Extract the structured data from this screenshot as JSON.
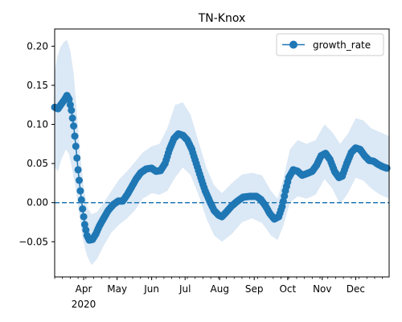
{
  "chart_data": {
    "type": "line",
    "title": "TN-Knox",
    "xlabel": "",
    "ylabel": "",
    "x_range": [
      "2020-03-06",
      "2020-12-31"
    ],
    "ylim": [
      -0.095,
      0.222
    ],
    "grid": false,
    "legend_position": "top-right",
    "y_ticks": [
      {
        "value": 0.2,
        "label": "0.20"
      },
      {
        "value": 0.15,
        "label": "0.15"
      },
      {
        "value": 0.1,
        "label": "0.10"
      },
      {
        "value": 0.05,
        "label": "0.05"
      },
      {
        "value": 0.0,
        "label": "0.00"
      },
      {
        "value": -0.05,
        "label": "−0.05"
      }
    ],
    "x_ticks": [
      {
        "date": "2020-04-01",
        "label": "Apr"
      },
      {
        "date": "2020-05-01",
        "label": "May"
      },
      {
        "date": "2020-06-01",
        "label": "Jun"
      },
      {
        "date": "2020-07-01",
        "label": "Jul"
      },
      {
        "date": "2020-08-01",
        "label": "Aug"
      },
      {
        "date": "2020-09-01",
        "label": "Sep"
      },
      {
        "date": "2020-10-01",
        "label": "Oct"
      },
      {
        "date": "2020-11-01",
        "label": "Nov"
      },
      {
        "date": "2020-12-01",
        "label": "Dec"
      }
    ],
    "year_label": "2020",
    "reference_line": {
      "y": 0.0,
      "style": "dashed",
      "color": "#1f77b4"
    },
    "series": [
      {
        "name": "growth_rate",
        "color": "#1f77b4",
        "band_color": "#dbe8f5",
        "marker": "circle",
        "points": [
          [
            "2020-03-06",
            0.122
          ],
          [
            "2020-03-09",
            0.12
          ],
          [
            "2020-03-12",
            0.126
          ],
          [
            "2020-03-15",
            0.132
          ],
          [
            "2020-03-17",
            0.137
          ],
          [
            "2020-03-19",
            0.132
          ],
          [
            "2020-03-21",
            0.118
          ],
          [
            "2020-03-23",
            0.098
          ],
          [
            "2020-03-25",
            0.072
          ],
          [
            "2020-03-27",
            0.042
          ],
          [
            "2020-03-29",
            0.015
          ],
          [
            "2020-03-31",
            -0.008
          ],
          [
            "2020-04-02",
            -0.028
          ],
          [
            "2020-04-04",
            -0.042
          ],
          [
            "2020-04-06",
            -0.048
          ],
          [
            "2020-04-09",
            -0.047
          ],
          [
            "2020-04-12",
            -0.04
          ],
          [
            "2020-04-15",
            -0.03
          ],
          [
            "2020-04-19",
            -0.02
          ],
          [
            "2020-04-23",
            -0.01
          ],
          [
            "2020-04-28",
            -0.002
          ],
          [
            "2020-05-02",
            0.002
          ],
          [
            "2020-05-06",
            0.002
          ],
          [
            "2020-05-10",
            0.01
          ],
          [
            "2020-05-14",
            0.02
          ],
          [
            "2020-05-18",
            0.03
          ],
          [
            "2020-05-22",
            0.038
          ],
          [
            "2020-05-27",
            0.043
          ],
          [
            "2020-06-01",
            0.044
          ],
          [
            "2020-06-05",
            0.04
          ],
          [
            "2020-06-09",
            0.041
          ],
          [
            "2020-06-13",
            0.05
          ],
          [
            "2020-06-17",
            0.068
          ],
          [
            "2020-06-21",
            0.082
          ],
          [
            "2020-06-25",
            0.088
          ],
          [
            "2020-06-29",
            0.086
          ],
          [
            "2020-07-03",
            0.08
          ],
          [
            "2020-07-07",
            0.068
          ],
          [
            "2020-07-11",
            0.05
          ],
          [
            "2020-07-15",
            0.032
          ],
          [
            "2020-07-19",
            0.015
          ],
          [
            "2020-07-23",
            0.002
          ],
          [
            "2020-07-27",
            -0.01
          ],
          [
            "2020-07-31",
            -0.016
          ],
          [
            "2020-08-03",
            -0.018
          ],
          [
            "2020-08-07",
            -0.012
          ],
          [
            "2020-08-12",
            -0.004
          ],
          [
            "2020-08-17",
            0.002
          ],
          [
            "2020-08-22",
            0.007
          ],
          [
            "2020-08-28",
            0.008
          ],
          [
            "2020-09-03",
            0.008
          ],
          [
            "2020-09-07",
            0.004
          ],
          [
            "2020-09-11",
            -0.004
          ],
          [
            "2020-09-15",
            -0.014
          ],
          [
            "2020-09-19",
            -0.021
          ],
          [
            "2020-09-23",
            -0.018
          ],
          [
            "2020-09-26",
            -0.005
          ],
          [
            "2020-09-29",
            0.015
          ],
          [
            "2020-10-02",
            0.032
          ],
          [
            "2020-10-06",
            0.042
          ],
          [
            "2020-10-10",
            0.04
          ],
          [
            "2020-10-14",
            0.035
          ],
          [
            "2020-10-18",
            0.037
          ],
          [
            "2020-10-23",
            0.04
          ],
          [
            "2020-10-27",
            0.048
          ],
          [
            "2020-10-31",
            0.06
          ],
          [
            "2020-11-04",
            0.063
          ],
          [
            "2020-11-08",
            0.055
          ],
          [
            "2020-11-12",
            0.04
          ],
          [
            "2020-11-16",
            0.032
          ],
          [
            "2020-11-19",
            0.034
          ],
          [
            "2020-11-23",
            0.05
          ],
          [
            "2020-11-27",
            0.064
          ],
          [
            "2020-12-01",
            0.07
          ],
          [
            "2020-12-05",
            0.068
          ],
          [
            "2020-12-09",
            0.06
          ],
          [
            "2020-12-13",
            0.054
          ],
          [
            "2020-12-17",
            0.053
          ],
          [
            "2020-12-21",
            0.049
          ],
          [
            "2020-12-25",
            0.046
          ],
          [
            "2020-12-29",
            0.044
          ]
        ],
        "band_upper": [
          [
            "2020-03-06",
            0.165
          ],
          [
            "2020-03-08",
            0.185
          ],
          [
            "2020-03-11",
            0.198
          ],
          [
            "2020-03-14",
            0.205
          ],
          [
            "2020-03-17",
            0.208
          ],
          [
            "2020-03-20",
            0.195
          ],
          [
            "2020-03-23",
            0.165
          ],
          [
            "2020-03-26",
            0.115
          ],
          [
            "2020-03-29",
            0.06
          ],
          [
            "2020-04-01",
            0.02
          ],
          [
            "2020-04-04",
            -0.005
          ],
          [
            "2020-04-08",
            -0.015
          ],
          [
            "2020-04-13",
            -0.012
          ],
          [
            "2020-04-19",
            0.0
          ],
          [
            "2020-04-26",
            0.015
          ],
          [
            "2020-05-03",
            0.03
          ],
          [
            "2020-05-10",
            0.04
          ],
          [
            "2020-05-17",
            0.052
          ],
          [
            "2020-05-24",
            0.064
          ],
          [
            "2020-06-01",
            0.072
          ],
          [
            "2020-06-08",
            0.075
          ],
          [
            "2020-06-15",
            0.095
          ],
          [
            "2020-06-22",
            0.125
          ],
          [
            "2020-06-29",
            0.128
          ],
          [
            "2020-07-06",
            0.112
          ],
          [
            "2020-07-13",
            0.078
          ],
          [
            "2020-07-20",
            0.045
          ],
          [
            "2020-07-27",
            0.022
          ],
          [
            "2020-08-03",
            0.012
          ],
          [
            "2020-08-12",
            0.025
          ],
          [
            "2020-08-21",
            0.036
          ],
          [
            "2020-08-30",
            0.038
          ],
          [
            "2020-09-08",
            0.035
          ],
          [
            "2020-09-16",
            0.015
          ],
          [
            "2020-09-22",
            0.005
          ],
          [
            "2020-09-27",
            0.03
          ],
          [
            "2020-10-03",
            0.068
          ],
          [
            "2020-10-10",
            0.08
          ],
          [
            "2020-10-18",
            0.075
          ],
          [
            "2020-10-26",
            0.08
          ],
          [
            "2020-11-03",
            0.1
          ],
          [
            "2020-11-10",
            0.09
          ],
          [
            "2020-11-17",
            0.075
          ],
          [
            "2020-11-24",
            0.088
          ],
          [
            "2020-12-01",
            0.108
          ],
          [
            "2020-12-08",
            0.105
          ],
          [
            "2020-12-15",
            0.095
          ],
          [
            "2020-12-23",
            0.09
          ],
          [
            "2020-12-31",
            0.085
          ]
        ],
        "band_lower": [
          [
            "2020-03-06",
            0.045
          ],
          [
            "2020-03-09",
            0.04
          ],
          [
            "2020-03-12",
            0.055
          ],
          [
            "2020-03-16",
            0.068
          ],
          [
            "2020-03-19",
            0.062
          ],
          [
            "2020-03-22",
            0.04
          ],
          [
            "2020-03-25",
            0.018
          ],
          [
            "2020-03-28",
            -0.015
          ],
          [
            "2020-03-31",
            -0.045
          ],
          [
            "2020-04-04",
            -0.068
          ],
          [
            "2020-04-08",
            -0.08
          ],
          [
            "2020-04-13",
            -0.072
          ],
          [
            "2020-04-19",
            -0.055
          ],
          [
            "2020-04-26",
            -0.038
          ],
          [
            "2020-05-03",
            -0.028
          ],
          [
            "2020-05-10",
            -0.02
          ],
          [
            "2020-05-17",
            -0.01
          ],
          [
            "2020-05-24",
            0.005
          ],
          [
            "2020-06-01",
            0.012
          ],
          [
            "2020-06-08",
            0.01
          ],
          [
            "2020-06-15",
            0.015
          ],
          [
            "2020-06-22",
            0.032
          ],
          [
            "2020-06-29",
            0.045
          ],
          [
            "2020-07-06",
            0.035
          ],
          [
            "2020-07-13",
            0.01
          ],
          [
            "2020-07-20",
            -0.02
          ],
          [
            "2020-07-27",
            -0.042
          ],
          [
            "2020-08-03",
            -0.05
          ],
          [
            "2020-08-12",
            -0.04
          ],
          [
            "2020-08-21",
            -0.025
          ],
          [
            "2020-08-30",
            -0.02
          ],
          [
            "2020-09-08",
            -0.026
          ],
          [
            "2020-09-16",
            -0.042
          ],
          [
            "2020-09-22",
            -0.048
          ],
          [
            "2020-09-27",
            -0.03
          ],
          [
            "2020-10-03",
            0.0
          ],
          [
            "2020-10-10",
            0.008
          ],
          [
            "2020-10-18",
            0.005
          ],
          [
            "2020-10-26",
            0.01
          ],
          [
            "2020-11-03",
            0.03
          ],
          [
            "2020-11-10",
            0.018
          ],
          [
            "2020-11-17",
            -0.002
          ],
          [
            "2020-11-24",
            0.012
          ],
          [
            "2020-12-01",
            0.032
          ],
          [
            "2020-12-08",
            0.028
          ],
          [
            "2020-12-15",
            0.018
          ],
          [
            "2020-12-23",
            0.01
          ],
          [
            "2020-12-31",
            0.005
          ]
        ]
      }
    ]
  }
}
